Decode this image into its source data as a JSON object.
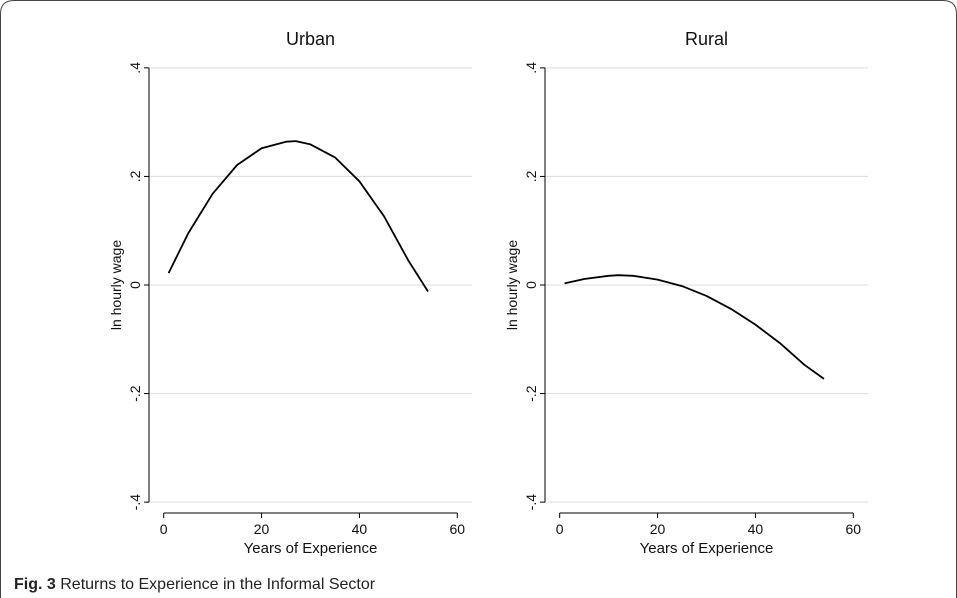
{
  "caption": {
    "label": "Fig. 3",
    "text": "Returns to Experience in the Informal Sector"
  },
  "chart_data": [
    {
      "type": "line",
      "title": "Urban",
      "xlabel": "Years of Experience",
      "ylabel": "ln hourly wage",
      "xlim": [
        -3,
        63
      ],
      "ylim": [
        -0.42,
        0.42
      ],
      "xticks": [
        0,
        20,
        40,
        60
      ],
      "xtick_labels": [
        "0",
        "20",
        "40",
        "60"
      ],
      "yticks": [
        -0.4,
        -0.2,
        0,
        0.2,
        0.4
      ],
      "ytick_labels": [
        "-.4",
        "-.2",
        "0",
        ".2",
        ".4"
      ],
      "grid": true,
      "series": [
        {
          "x": [
            1,
            5,
            10,
            15,
            20,
            25,
            27,
            30,
            35,
            40,
            45,
            50,
            54
          ],
          "y": [
            0.022,
            0.095,
            0.168,
            0.221,
            0.252,
            0.264,
            0.265,
            0.259,
            0.235,
            0.191,
            0.127,
            0.045,
            -0.012
          ],
          "color": "#000000"
        }
      ]
    },
    {
      "type": "line",
      "title": "Rural",
      "xlabel": "Years of Experience",
      "ylabel": "ln hourly wage",
      "xlim": [
        -3,
        63
      ],
      "ylim": [
        -0.42,
        0.42
      ],
      "xticks": [
        0,
        20,
        40,
        60
      ],
      "xtick_labels": [
        "0",
        "20",
        "40",
        "60"
      ],
      "yticks": [
        -0.4,
        -0.2,
        0,
        0.2,
        0.4
      ],
      "ytick_labels": [
        "-.4",
        "-.2",
        "0",
        ".2",
        ".4"
      ],
      "grid": true,
      "series": [
        {
          "x": [
            1,
            5,
            10,
            12,
            15,
            20,
            25,
            30,
            35,
            40,
            45,
            50,
            54
          ],
          "y": [
            0.003,
            0.011,
            0.017,
            0.018,
            0.017,
            0.01,
            -0.002,
            -0.02,
            -0.044,
            -0.073,
            -0.107,
            -0.147,
            -0.173
          ],
          "color": "#000000"
        }
      ]
    }
  ]
}
